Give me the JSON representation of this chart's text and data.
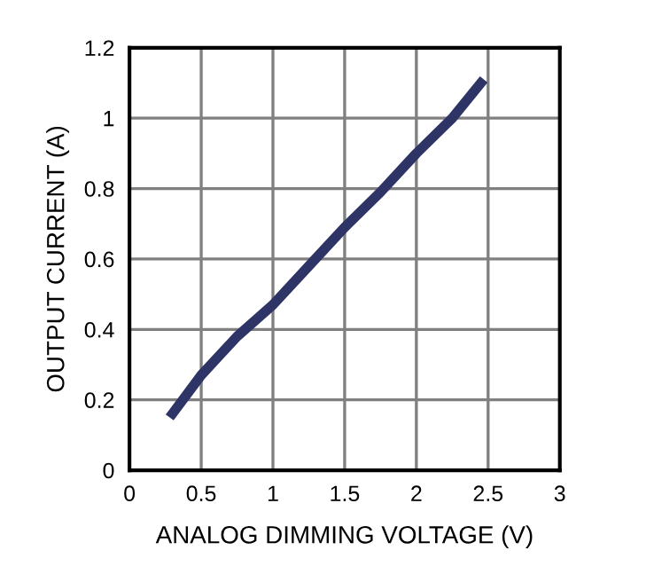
{
  "chart_data": {
    "type": "line",
    "xlabel": "ANALOG DIMMING VOLTAGE (V)",
    "ylabel": "OUTPUT CURRENT (A)",
    "x": [
      0.28,
      0.5,
      0.75,
      1.0,
      1.25,
      1.5,
      1.75,
      2.0,
      2.25,
      2.47
    ],
    "series": [
      {
        "color": "#2e3566",
        "values": [
          0.15,
          0.27,
          0.38,
          0.47,
          0.58,
          0.69,
          0.79,
          0.9,
          1.0,
          1.11
        ]
      }
    ],
    "xlim": [
      0,
      3
    ],
    "xticks": [
      0,
      0.5,
      1,
      1.5,
      2,
      2.5,
      3
    ],
    "ylim": [
      0,
      1.2
    ],
    "yticks": [
      0,
      0.2,
      0.4,
      0.6,
      0.8,
      1,
      1.2
    ],
    "grid": true,
    "line_style": "solid",
    "marker": "none"
  }
}
